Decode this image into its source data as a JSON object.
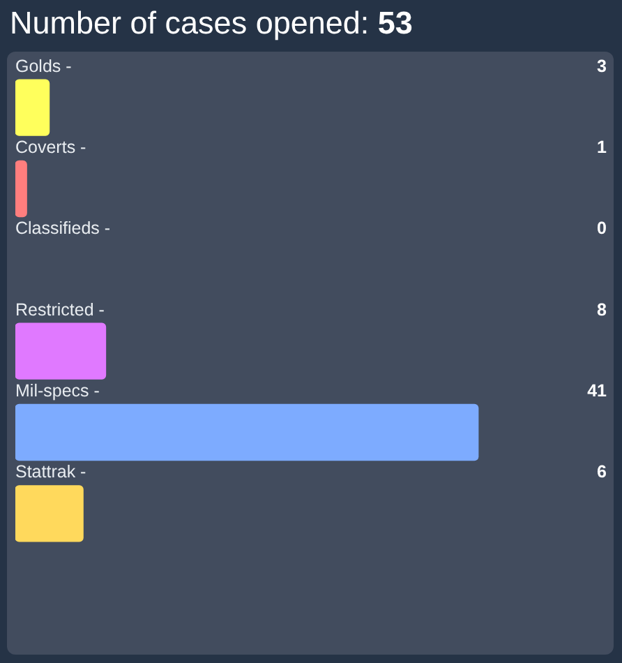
{
  "chart_data": {
    "type": "bar",
    "orientation": "horizontal",
    "title": "Number of cases opened: 53",
    "categories": [
      "Golds -",
      "Coverts -",
      "Classifieds -",
      "Restricted -",
      "Mil-specs -",
      "Stattrak -"
    ],
    "values": [
      3,
      1,
      0,
      8,
      41,
      6
    ],
    "colors": [
      "#ffff5c",
      "#ff7e7e",
      null,
      "#e079ff",
      "#7dabff",
      "#ffd95c"
    ],
    "xlim": [
      0,
      53
    ],
    "tick_labels": "y",
    "data_labels": true
  }
}
